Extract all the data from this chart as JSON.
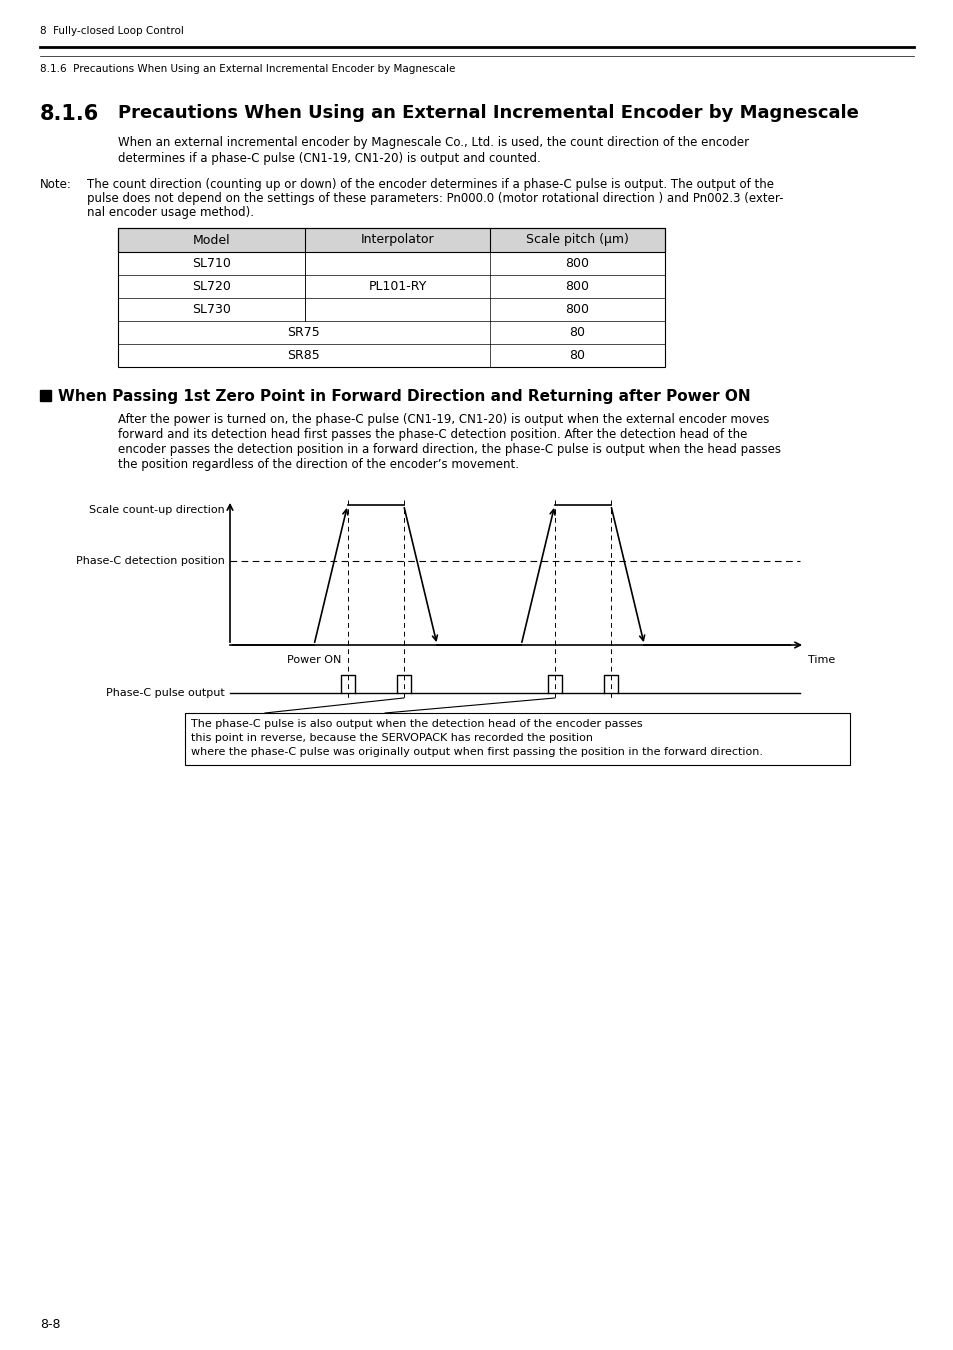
{
  "page_bg": "#ffffff",
  "header_text1": "8  Fully-closed Loop Control",
  "header_text2": "8.1.6  Precautions When Using an External Incremental Encoder by Magnescale",
  "section_num": "8.1.6",
  "section_title": "Precautions When Using an External Incremental Encoder by Magnescale",
  "body_text1a": "When an external incremental encoder by Magnescale Co., Ltd. is used, the count direction of the encoder",
  "body_text1b": "determines if a phase-C pulse (CN1-19, CN1-20) is output and counted.",
  "note_label": "Note:",
  "note_line1": "The count direction (counting up or down) of the encoder determines if a phase-C pulse is output. The output of the",
  "note_line2": "pulse does not depend on the settings of these parameters: Pn000.0 (motor rotational direction ) and Pn002.3 (exter-",
  "note_line3": "nal encoder usage method).",
  "table_headers": [
    "Model",
    "Interpolator",
    "Scale pitch (μm)"
  ],
  "table_col1_models_top": [
    "SL710",
    "SL720",
    "SL730"
  ],
  "table_col2_interp": "PL101-RY",
  "table_col1_models_bot": [
    "SR75",
    "SR85"
  ],
  "table_pitches_top": [
    "800",
    "800",
    "800"
  ],
  "table_pitches_bot": [
    "80",
    "80"
  ],
  "subsection_title": "When Passing 1st Zero Point in Forward Direction and Returning after Power ON",
  "body2_line1": "After the power is turned on, the phase-C pulse (CN1-19, CN1-20) is output when the external encoder moves",
  "body2_line2": "forward and its detection head first passes the phase-C detection position. After the detection head of the",
  "body2_line3": "encoder passes the detection position in a forward direction, the phase-C pulse is output when the head passes",
  "body2_line4": "the position regardless of the direction of the encoder’s movement.",
  "diag_label_scale": "Scale count-up direction",
  "diag_label_phaseC": "Phase-C detection position",
  "diag_label_power": "Power ON",
  "diag_label_time": "Time",
  "diag_label_pulse": "Phase-C pulse output",
  "ann_line1": "The phase-C pulse is also output when the detection head of the encoder passes",
  "ann_line2": "this point in reverse, because the SERVOPACK has recorded the position",
  "ann_line3": "where the phase-C pulse was originally output when first passing the position in the forward direction.",
  "footer": "8-8"
}
